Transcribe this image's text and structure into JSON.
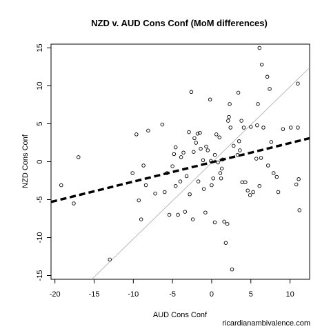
{
  "chart_data": {
    "type": "scatter",
    "title": "NZD v. AUD Cons Conf (MoM differences)",
    "xlabel": "AUD Cons Conf",
    "ylabel": "NZD Cons Conf",
    "credit": "ricardianambivalence.com",
    "xlim": [
      -20.5,
      12.5
    ],
    "ylim": [
      -15.5,
      15.5
    ],
    "x_ticks": [
      -20,
      -15,
      -10,
      -5,
      0,
      5,
      10
    ],
    "y_ticks": [
      -15,
      -10,
      -5,
      0,
      5,
      10,
      15
    ],
    "grid": false,
    "point_color": "#000000",
    "fit_line": {
      "style": "dashed",
      "color": "#000000",
      "points": [
        [
          -20.5,
          -5.3
        ],
        [
          12.5,
          3.1
        ]
      ]
    },
    "reference_line": {
      "style": "solid",
      "color": "#aaaaaa",
      "points": [
        [
          -15.3,
          -15.5
        ],
        [
          12.5,
          12.4
        ]
      ]
    },
    "points": [
      [
        -19.2,
        -3.1
      ],
      [
        -17.0,
        0.6
      ],
      [
        -17.6,
        -5.5
      ],
      [
        -10.1,
        -1.5
      ],
      [
        -9.6,
        3.6
      ],
      [
        -9.3,
        -5.1
      ],
      [
        -9.0,
        -7.6
      ],
      [
        -8.7,
        -0.5
      ],
      [
        -8.4,
        -3.1
      ],
      [
        -8.1,
        4.1
      ],
      [
        -7.2,
        -4.2
      ],
      [
        -6.3,
        4.9
      ],
      [
        -6.0,
        -4.0
      ],
      [
        -5.7,
        -1.5
      ],
      [
        -5.4,
        -7.0
      ],
      [
        -5.0,
        -0.6
      ],
      [
        -4.8,
        1.0
      ],
      [
        -4.6,
        -3.2
      ],
      [
        -4.6,
        1.9
      ],
      [
        -4.3,
        -7.0
      ],
      [
        -4.0,
        -2.6
      ],
      [
        -3.9,
        0.6
      ],
      [
        -3.6,
        1.2
      ],
      [
        -3.4,
        -6.6
      ],
      [
        -3.2,
        -1.9
      ],
      [
        -2.9,
        3.9
      ],
      [
        -2.8,
        -4.3
      ],
      [
        -2.6,
        9.2
      ],
      [
        -2.4,
        -7.6
      ],
      [
        -2.3,
        1.3
      ],
      [
        -2.2,
        3.1
      ],
      [
        -2.0,
        2.5
      ],
      [
        -1.8,
        3.7
      ],
      [
        -1.7,
        -2.6
      ],
      [
        -1.5,
        3.8
      ],
      [
        -1.4,
        1.7
      ],
      [
        -1.1,
        0.2
      ],
      [
        -1.0,
        -3.6
      ],
      [
        -0.8,
        -6.7
      ],
      [
        -0.7,
        2.0
      ],
      [
        -0.5,
        1.5
      ],
      [
        -0.2,
        8.2
      ],
      [
        -0.1,
        0.1
      ],
      [
        0.0,
        -3.1
      ],
      [
        0.2,
        -2.2
      ],
      [
        0.4,
        -8.0
      ],
      [
        0.4,
        0.9
      ],
      [
        0.6,
        3.6
      ],
      [
        0.8,
        -0.1
      ],
      [
        1.0,
        3.2
      ],
      [
        1.1,
        -1.5
      ],
      [
        1.2,
        -2.2
      ],
      [
        1.3,
        -0.9
      ],
      [
        1.4,
        0.3
      ],
      [
        1.6,
        -7.9
      ],
      [
        1.8,
        -10.7
      ],
      [
        2.0,
        -8.2
      ],
      [
        2.1,
        5.4
      ],
      [
        2.2,
        5.9
      ],
      [
        2.3,
        7.6
      ],
      [
        2.4,
        4.5
      ],
      [
        2.6,
        -14.2
      ],
      [
        2.8,
        2.1
      ],
      [
        3.3,
        0.9
      ],
      [
        3.4,
        9.1
      ],
      [
        3.5,
        2.7
      ],
      [
        3.6,
        1.5
      ],
      [
        3.8,
        5.4
      ],
      [
        3.9,
        -2.7
      ],
      [
        4.1,
        4.5
      ],
      [
        4.3,
        -2.7
      ],
      [
        4.6,
        -3.8
      ],
      [
        4.9,
        -4.4
      ],
      [
        5.0,
        4.6
      ],
      [
        5.3,
        -4.0
      ],
      [
        5.7,
        0.4
      ],
      [
        5.8,
        4.8
      ],
      [
        5.9,
        7.6
      ],
      [
        6.1,
        15.0
      ],
      [
        6.1,
        -3.2
      ],
      [
        6.3,
        0.5
      ],
      [
        6.4,
        12.8
      ],
      [
        6.6,
        4.5
      ],
      [
        7.1,
        11.2
      ],
      [
        7.2,
        -0.5
      ],
      [
        7.4,
        9.6
      ],
      [
        7.6,
        2.6
      ],
      [
        7.9,
        -1.5
      ],
      [
        8.3,
        -2.0
      ],
      [
        8.5,
        -4.0
      ],
      [
        9.1,
        4.3
      ],
      [
        10.1,
        4.5
      ],
      [
        10.8,
        -3.0
      ],
      [
        11.0,
        10.3
      ],
      [
        11.0,
        4.5
      ],
      [
        11.1,
        -2.3
      ],
      [
        11.2,
        -6.4
      ],
      [
        -13.0,
        -12.9
      ]
    ]
  }
}
